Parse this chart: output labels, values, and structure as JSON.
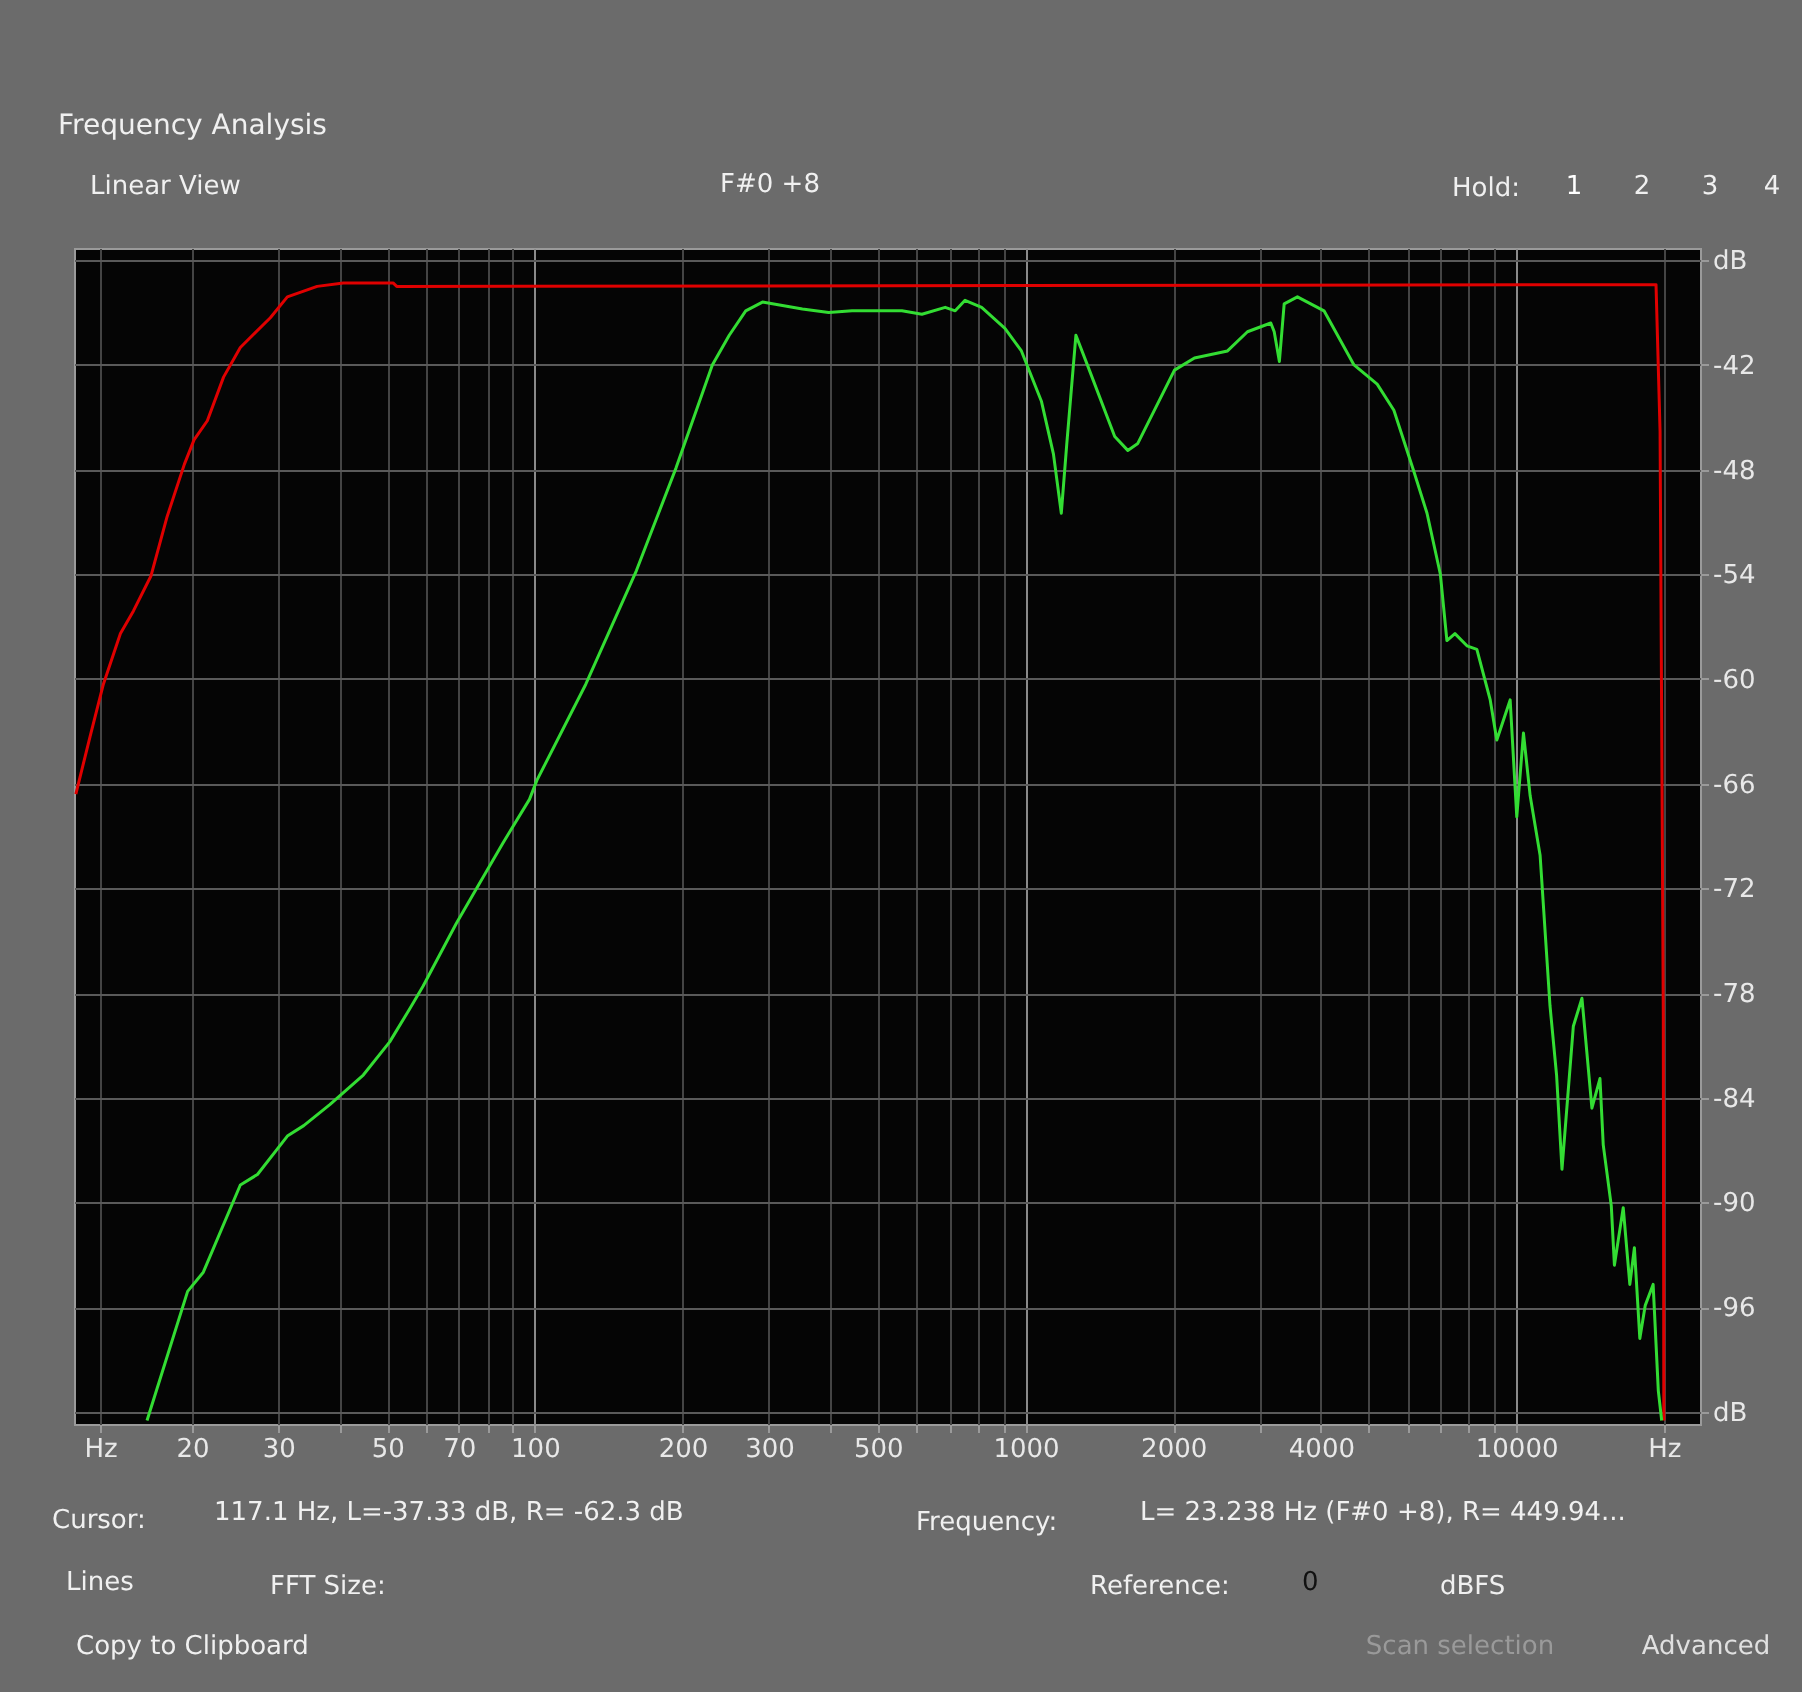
{
  "chart_data": {
    "type": "line",
    "title": "Frequency Analysis",
    "subtitle": "F#0 +8",
    "xlim": [
      11.5,
      23700
    ],
    "ylim": [
      -102.7,
      -35.3
    ],
    "log": "x",
    "grid": true,
    "legend": false,
    "marker": "none",
    "line_style": "solid",
    "xticks": [
      {
        "value": 13,
        "label": "Hz"
      },
      20,
      30,
      {
        "value": 40,
        "label": null
      },
      50,
      {
        "value": 60,
        "label": null
      },
      70,
      {
        "value": 80,
        "label": null
      },
      {
        "value": 90,
        "label": null
      },
      100,
      200,
      300,
      {
        "value": 400,
        "label": null
      },
      500,
      {
        "value": 600,
        "label": null
      },
      {
        "value": 700,
        "label": null
      },
      {
        "value": 800,
        "label": null
      },
      {
        "value": 900,
        "label": null
      },
      1000,
      2000,
      {
        "value": 3000,
        "label": null
      },
      4000,
      {
        "value": 5000,
        "label": null
      },
      {
        "value": 6000,
        "label": null
      },
      {
        "value": 7000,
        "label": null
      },
      {
        "value": 8000,
        "label": null
      },
      {
        "value": 9000,
        "label": null
      },
      10000,
      {
        "value": 20000,
        "label": "Hz"
      }
    ],
    "yticks": [
      {
        "value": -36,
        "label": "dB"
      },
      -42,
      -48,
      -54,
      -60,
      -66,
      -72,
      -78,
      -84,
      -90,
      -96,
      {
        "value": -102,
        "label": "dB"
      }
    ],
    "series": [
      {
        "color": "#e00000",
        "x": [
          11.6,
          12.4,
          13.2,
          14.3,
          15.2,
          16.5,
          17.8,
          19.3,
          20.2,
          21.5,
          23.2,
          25.1,
          28.9,
          31.3,
          36.0,
          40.7,
          51.4,
          52.3,
          19280,
          19650,
          19950,
          20000
        ],
        "values": [
          -66.6,
          -63.3,
          -60.3,
          -57.4,
          -56.1,
          -54.1,
          -50.7,
          -47.7,
          -46.3,
          -45.2,
          -42.7,
          -41.0,
          -39.3,
          -38.1,
          -37.5,
          -37.3,
          -37.3,
          -37.5,
          -37.4,
          -45.8,
          -79.3,
          -102.5
        ]
      },
      {
        "color": "#33dd33",
        "x": [
          16.2,
          19.6,
          21.1,
          25.1,
          27.2,
          31.3,
          33.8,
          38.2,
          44.7,
          50.6,
          55.6,
          59.2,
          69.2,
          77.2,
          86.1,
          97.5,
          101,
          127,
          161,
          194,
          230,
          249,
          269,
          291,
          351,
          397,
          443,
          560,
          615,
          686,
          719,
          753,
          814,
          908,
          981,
          1078,
          1140,
          1183,
          1214,
          1267,
          1341,
          1520,
          1616,
          1694,
          2012,
          2210,
          2581,
          2834,
          3162,
          3213,
          3292,
          3367,
          3583,
          4059,
          4672,
          5209,
          5634,
          6186,
          6582,
          7008,
          7226,
          7504,
          7939,
          8317,
          8855,
          9133,
          9723,
          10030,
          10350,
          10680,
          11190,
          11720,
          12090,
          12400,
          13080,
          13620,
          14270,
          14820,
          15050,
          15630,
          15860,
          16530,
          17050,
          17420,
          17870,
          18330,
          19020,
          19490,
          19800
        ],
        "values": [
          -102.5,
          -95.1,
          -94.0,
          -89.0,
          -88.4,
          -86.2,
          -85.6,
          -84.4,
          -82.7,
          -80.8,
          -78.9,
          -77.6,
          -74.0,
          -71.7,
          -69.4,
          -66.9,
          -65.8,
          -60.3,
          -53.8,
          -47.9,
          -42.0,
          -40.3,
          -38.9,
          -38.4,
          -38.8,
          -39.0,
          -38.9,
          -38.9,
          -39.1,
          -38.7,
          -38.9,
          -38.3,
          -38.7,
          -39.9,
          -41.2,
          -44.1,
          -47.1,
          -50.5,
          -46.5,
          -40.3,
          -42.1,
          -46.1,
          -46.9,
          -46.5,
          -42.3,
          -41.6,
          -41.2,
          -40.1,
          -39.6,
          -40.1,
          -41.8,
          -38.5,
          -38.1,
          -38.9,
          -42.0,
          -43.1,
          -44.6,
          -48.1,
          -50.5,
          -54.0,
          -57.8,
          -57.4,
          -58.1,
          -58.3,
          -61.2,
          -63.5,
          -61.2,
          -67.9,
          -63.1,
          -66.7,
          -70.1,
          -78.7,
          -82.7,
          -88.1,
          -79.9,
          -78.3,
          -84.6,
          -82.9,
          -86.7,
          -90.2,
          -93.6,
          -90.3,
          -94.7,
          -92.6,
          -97.8,
          -95.9,
          -94.7,
          -100.8,
          -102.5
        ]
      }
    ],
    "annotations": [
      "Linear View",
      "Hold:",
      "1",
      "2",
      "3",
      "4",
      "Cursor:",
      "117.1 Hz, L=-37.33 dB, R= -62.3 dB",
      "Frequency:",
      "L= 23.238 Hz (F#0 +8), R= 449.94...",
      "Lines",
      "FFT Size:",
      "Reference:",
      "0",
      "dBFS",
      "Copy to Clipboard",
      "Scan selection",
      "Advanced"
    ]
  }
}
